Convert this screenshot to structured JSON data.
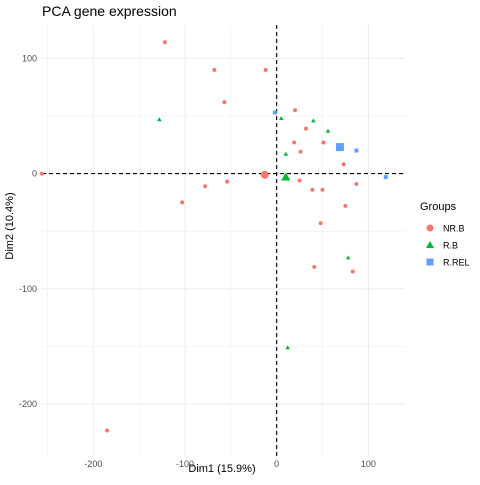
{
  "chart_data": {
    "type": "scatter",
    "title": "PCA gene expression",
    "xlabel": "Dim1 (15.9%)",
    "ylabel": "Dim2 (10.4%)",
    "xlim": [
      -256,
      140
    ],
    "ylim": [
      -246,
      129
    ],
    "x_ticks": [
      -200,
      -100,
      0,
      100
    ],
    "y_ticks": [
      100,
      0,
      -100,
      -200
    ],
    "reference_lines": {
      "x": 0,
      "y": 0,
      "style": "dashed"
    },
    "grid": true,
    "legend": {
      "title": "Groups",
      "position": "right",
      "entries": [
        "NR.B",
        "R.B",
        "R.REL"
      ]
    },
    "colors": {
      "NR.B": "#F8766D",
      "R.B": "#00BA38",
      "R.REL": "#619CFF",
      "grid": "#EBEBEB",
      "text": "#4D4D4D"
    },
    "series": [
      {
        "name": "NR.B",
        "shape": "circle",
        "points": [
          [
            -122,
            114
          ],
          [
            -68,
            90
          ],
          [
            -12,
            90
          ],
          [
            -57,
            62
          ],
          [
            -256,
            0
          ],
          [
            -78,
            -11
          ],
          [
            -103,
            -25
          ],
          [
            -54,
            -7
          ],
          [
            -13,
            -2
          ],
          [
            20,
            55
          ],
          [
            32,
            39
          ],
          [
            19,
            27
          ],
          [
            26,
            19
          ],
          [
            51,
            27
          ],
          [
            73,
            8
          ],
          [
            25,
            -6
          ],
          [
            39,
            -14
          ],
          [
            50,
            -14
          ],
          [
            48,
            -43
          ],
          [
            75,
            -28
          ],
          [
            87,
            -9
          ],
          [
            41,
            -81
          ],
          [
            83,
            -85
          ],
          [
            -185,
            -223
          ]
        ],
        "centroid": [
          -13,
          -1
        ]
      },
      {
        "name": "R.B",
        "shape": "triangle",
        "points": [
          [
            -128,
            47
          ],
          [
            5,
            48
          ],
          [
            40,
            46
          ],
          [
            56,
            37
          ],
          [
            10,
            17
          ],
          [
            10,
            -2
          ],
          [
            78,
            -73
          ],
          [
            12,
            -151
          ]
        ],
        "centroid": [
          10,
          -3
        ]
      },
      {
        "name": "R.REL",
        "shape": "square",
        "points": [
          [
            -2,
            53
          ],
          [
            87,
            20
          ],
          [
            119,
            -3
          ]
        ],
        "centroid": [
          69,
          23
        ]
      }
    ]
  }
}
